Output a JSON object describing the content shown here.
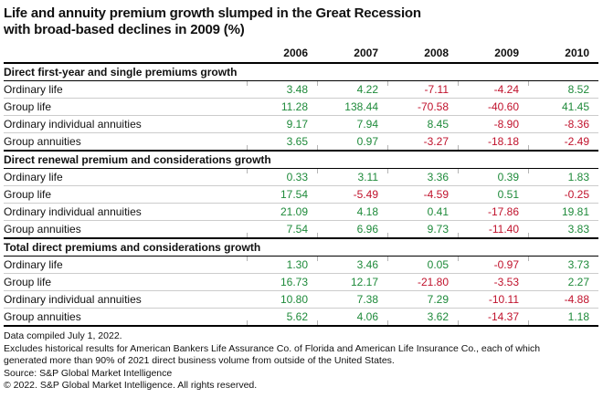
{
  "colors": {
    "positive": "#1e8a3a",
    "negative": "#c0122c",
    "rule_black": "#000000",
    "rule_gray": "#cccccc"
  },
  "chart_data": {
    "type": "table",
    "title": "Life and annuity premium growth slumped in the Great Recession\nwith broad-based declines in 2009 (%)",
    "year_columns": [
      "2006",
      "2007",
      "2008",
      "2009",
      "2010"
    ],
    "sections": [
      {
        "header": "Direct first-year and single premiums growth",
        "rows": [
          {
            "label": "Ordinary life",
            "values": [
              "3.48",
              "4.22",
              "-7.11",
              "-4.24",
              "8.52"
            ]
          },
          {
            "label": "Group life",
            "values": [
              "11.28",
              "138.44",
              "-70.58",
              "-40.60",
              "41.45"
            ]
          },
          {
            "label": "Ordinary individual annuities",
            "values": [
              "9.17",
              "7.94",
              "8.45",
              "-8.90",
              "-8.36"
            ]
          },
          {
            "label": "Group annuities",
            "values": [
              "3.65",
              "0.97",
              "-3.27",
              "-18.18",
              "-2.49"
            ]
          }
        ]
      },
      {
        "header": "Direct renewal premium and considerations growth",
        "rows": [
          {
            "label": "Ordinary life",
            "values": [
              "0.33",
              "3.11",
              "3.36",
              "0.39",
              "1.83"
            ]
          },
          {
            "label": "Group life",
            "values": [
              "17.54",
              "-5.49",
              "-4.59",
              "0.51",
              "-0.25"
            ]
          },
          {
            "label": "Ordinary individual annuities",
            "values": [
              "21.09",
              "4.18",
              "0.41",
              "-17.86",
              "19.81"
            ]
          },
          {
            "label": "Group annuities",
            "values": [
              "7.54",
              "6.96",
              "9.73",
              "-11.40",
              "3.83"
            ]
          }
        ]
      },
      {
        "header": "Total direct premiums and considerations growth",
        "rows": [
          {
            "label": "Ordinary life",
            "values": [
              "1.30",
              "3.46",
              "0.05",
              "-0.97",
              "3.73"
            ]
          },
          {
            "label": "Group life",
            "values": [
              "16.73",
              "12.17",
              "-21.80",
              "-3.53",
              "2.27"
            ]
          },
          {
            "label": "Ordinary individual annuities",
            "values": [
              "10.80",
              "7.38",
              "7.29",
              "-10.11",
              "-4.88"
            ]
          },
          {
            "label": "Group annuities",
            "values": [
              "5.62",
              "4.06",
              "3.62",
              "-14.37",
              "1.18"
            ]
          }
        ]
      }
    ]
  },
  "footnotes": [
    "Data compiled July 1, 2022.",
    "Excludes historical results for American Bankers Life Assurance Co. of Florida and American Life Insurance Co., each of which\ngenerated more than 90% of 2021 direct business volume from outside of the United States.",
    "Source: S&P Global Market Intelligence",
    "© 2022. S&P Global Market Intelligence. All rights reserved."
  ]
}
